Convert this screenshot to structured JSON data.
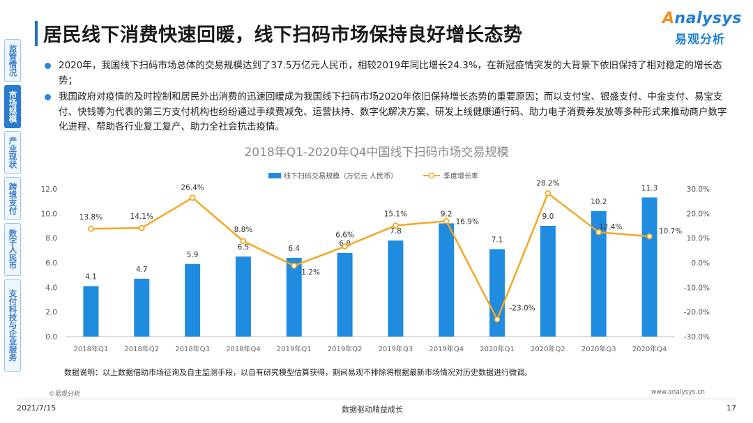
{
  "sidebar": {
    "items": [
      {
        "label": "监管情况",
        "active": false
      },
      {
        "label": "市场规模",
        "active": true
      },
      {
        "label": "产业现状",
        "active": false
      },
      {
        "label": "跨境支付",
        "active": false
      },
      {
        "label": "数字人民币",
        "active": false
      },
      {
        "label": "支付科技与企业服务",
        "active": false
      }
    ]
  },
  "header": {
    "title": "居民线下消费快速回暖，线下扫码市场保持良好增长态势",
    "logo_text_prefix": "A",
    "logo_text_rest": "nalysys",
    "logo_cn": "易观分析"
  },
  "bullets": [
    "2020年，我国线下扫码市场总体的交易规模达到了37.5万亿元人民币，相较2019年同比增长24.3%，在新冠疫情突发的大背景下依旧保持了相对稳定的增长态势；",
    "我国政府对疫情的及时控制和居民外出消费的迅速回暖成为我国线下扫码市场2020年依旧保持增长态势的重要原因；而以支付宝、银盛支付、中金支付、易宝支付、快钱等为代表的第三方支付机构也纷纷通过手续费减免、运营扶持、数字化解决方案、研发上线健康通行码、助力电子消费券发放等多种形式来推动商户数字化进程、帮助各行业复工复产、助力全社会抗击疫情。"
  ],
  "chart_data": {
    "type": "bar",
    "title": "2018年Q1-2020年Q4中国线下扫码市场交易规模",
    "categories": [
      "2018年Q1",
      "2018年Q2",
      "2018年Q3",
      "2018年Q4",
      "2019年Q1",
      "2019年Q2",
      "2019年Q3",
      "2019年Q4",
      "2020年Q1",
      "2020年Q2",
      "2020年Q3",
      "2020年Q4"
    ],
    "series": [
      {
        "name": "线下扫码交易规模（万亿元 人民币）",
        "type": "bar",
        "axis": "left",
        "values": [
          4.1,
          4.7,
          5.9,
          6.5,
          6.4,
          6.8,
          7.8,
          9.2,
          7.1,
          9.0,
          10.2,
          11.3
        ],
        "labels": [
          "4.1",
          "4.7",
          "5.9",
          "6.5",
          "6.4",
          "6.8",
          "7.8",
          "9.2",
          "7.1",
          "9.0",
          "10.2",
          "11.3"
        ]
      },
      {
        "name": "季度增长率",
        "type": "line",
        "axis": "right",
        "values": [
          13.8,
          14.1,
          26.4,
          8.8,
          -1.2,
          6.6,
          15.1,
          16.9,
          -23.0,
          28.2,
          12.4,
          10.7
        ],
        "labels": [
          "13.8%",
          "14.1%",
          "26.4%",
          "8.8%",
          "-1.2%",
          "6.6%",
          "15.1%",
          "16.9%",
          "-23.0%",
          "28.2%",
          "12.4%",
          "10.7%"
        ]
      }
    ],
    "ylim": [
      0,
      12
    ],
    "yticks": [
      "0.0",
      "2.0",
      "4.0",
      "6.0",
      "8.0",
      "10.0",
      "12.0"
    ],
    "y2lim": [
      -30,
      30
    ],
    "y2ticks": [
      "-30.0%",
      "-20.0%",
      "-10.0%",
      "0.0%",
      "10.0%",
      "20.0%",
      "30.0%"
    ],
    "legend_position": "top",
    "grid": false,
    "colors": {
      "bar": "#1f8ce0",
      "line": "#f5a623",
      "marker_fill": "#ffffff"
    }
  },
  "footer": {
    "note": "数据说明：以上数据借助市场征询及自主监测手段，以自有研究模型估算获得，期间易观不排除将根据最新市场情况对历史数据进行微调。",
    "copyright": "©易观分析",
    "website": "www.analysys.cn",
    "date": "2021/7/15",
    "slogan": "数据驱动精益成长",
    "page": "17"
  }
}
